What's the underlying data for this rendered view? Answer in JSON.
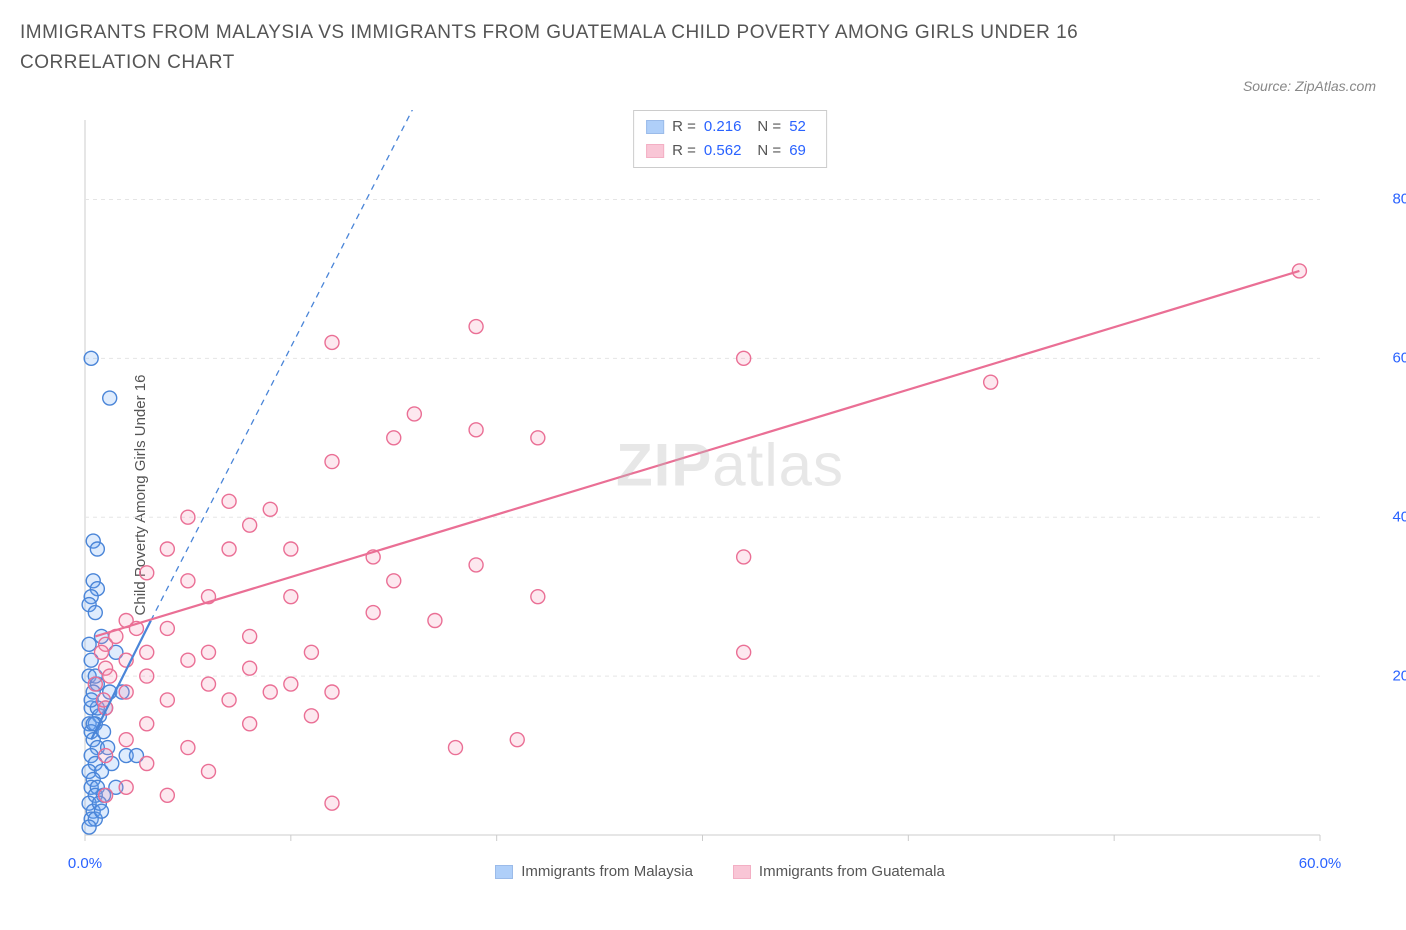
{
  "title": "IMMIGRANTS FROM MALAYSIA VS IMMIGRANTS FROM GUATEMALA CHILD POVERTY AMONG GIRLS UNDER 16 CORRELATION CHART",
  "source": "Source: ZipAtlas.com",
  "y_axis_label": "Child Poverty Among Girls Under 16",
  "watermark_bold": "ZIP",
  "watermark_light": "atlas",
  "chart": {
    "type": "scatter",
    "xlim": [
      0,
      60
    ],
    "ylim": [
      0,
      90
    ],
    "x_ticks": [
      0,
      10,
      20,
      30,
      40,
      50,
      60
    ],
    "x_tick_labels": {
      "0": "0.0%",
      "60": "60.0%"
    },
    "y_gridlines": [
      20,
      40,
      60,
      80
    ],
    "y_tick_labels": [
      "20.0%",
      "40.0%",
      "60.0%",
      "80.0%"
    ],
    "background_color": "#ffffff",
    "grid_color": "#e5e5e5",
    "axis_color": "#cccccc",
    "marker_radius": 7,
    "marker_stroke_width": 1.4,
    "marker_fill_opacity": 0.22,
    "series": [
      {
        "name": "Immigrants from Malaysia",
        "color": "#6fa8f5",
        "stroke": "#4a85d8",
        "R": "0.216",
        "N": "52",
        "trend": {
          "x1": 0.3,
          "y1": 12,
          "x2": 3.2,
          "y2": 27,
          "dash_ext_x": 20,
          "dash_ext_y": 112
        },
        "points": [
          [
            0.3,
            60
          ],
          [
            1.2,
            55
          ],
          [
            0.4,
            37
          ],
          [
            0.6,
            36
          ],
          [
            0.4,
            32
          ],
          [
            0.6,
            31
          ],
          [
            0.3,
            30
          ],
          [
            0.2,
            29
          ],
          [
            0.5,
            28
          ],
          [
            0.2,
            24
          ],
          [
            0.8,
            25
          ],
          [
            0.3,
            22
          ],
          [
            1.5,
            23
          ],
          [
            0.2,
            20
          ],
          [
            0.6,
            19
          ],
          [
            0.4,
            18
          ],
          [
            1.2,
            18
          ],
          [
            0.3,
            16
          ],
          [
            0.7,
            15
          ],
          [
            0.2,
            14
          ],
          [
            0.5,
            14
          ],
          [
            0.3,
            13
          ],
          [
            0.9,
            13
          ],
          [
            0.4,
            12
          ],
          [
            1.8,
            18
          ],
          [
            0.6,
            11
          ],
          [
            0.3,
            10
          ],
          [
            1.1,
            11
          ],
          [
            0.5,
            9
          ],
          [
            0.2,
            8
          ],
          [
            0.8,
            8
          ],
          [
            2.0,
            10
          ],
          [
            0.4,
            7
          ],
          [
            1.3,
            9
          ],
          [
            0.3,
            6
          ],
          [
            0.6,
            6
          ],
          [
            2.5,
            10
          ],
          [
            0.5,
            5
          ],
          [
            0.2,
            4
          ],
          [
            0.9,
            5
          ],
          [
            0.4,
            3
          ],
          [
            1.5,
            6
          ],
          [
            0.7,
            4
          ],
          [
            0.3,
            2
          ],
          [
            0.5,
            2
          ],
          [
            0.2,
            1
          ],
          [
            0.8,
            3
          ],
          [
            0.4,
            14
          ],
          [
            0.6,
            16
          ],
          [
            1.0,
            16
          ],
          [
            0.3,
            17
          ],
          [
            0.5,
            20
          ]
        ]
      },
      {
        "name": "Immigrants from Guatemala",
        "color": "#f598b5",
        "stroke": "#ea6f95",
        "R": "0.562",
        "N": "69",
        "trend": {
          "x1": 0.5,
          "y1": 25,
          "x2": 59,
          "y2": 71,
          "dash_ext_x": 0,
          "dash_ext_y": 0
        },
        "points": [
          [
            59,
            71
          ],
          [
            44,
            57
          ],
          [
            32,
            60
          ],
          [
            19,
            64
          ],
          [
            12,
            62
          ],
          [
            16,
            53
          ],
          [
            19,
            51
          ],
          [
            22,
            50
          ],
          [
            15,
            50
          ],
          [
            12,
            47
          ],
          [
            7,
            42
          ],
          [
            9,
            41
          ],
          [
            5,
            40
          ],
          [
            8,
            39
          ],
          [
            4,
            36
          ],
          [
            7,
            36
          ],
          [
            10,
            36
          ],
          [
            14,
            35
          ],
          [
            32,
            35
          ],
          [
            3,
            33
          ],
          [
            5,
            32
          ],
          [
            19,
            34
          ],
          [
            15,
            32
          ],
          [
            6,
            30
          ],
          [
            10,
            30
          ],
          [
            22,
            30
          ],
          [
            2,
            27
          ],
          [
            4,
            26
          ],
          [
            8,
            25
          ],
          [
            14,
            28
          ],
          [
            17,
            27
          ],
          [
            1,
            24
          ],
          [
            3,
            23
          ],
          [
            6,
            23
          ],
          [
            11,
            23
          ],
          [
            32,
            23
          ],
          [
            2,
            22
          ],
          [
            5,
            22
          ],
          [
            8,
            21
          ],
          [
            1,
            21
          ],
          [
            3,
            20
          ],
          [
            6,
            19
          ],
          [
            10,
            19
          ],
          [
            2,
            18
          ],
          [
            4,
            17
          ],
          [
            7,
            17
          ],
          [
            1,
            16
          ],
          [
            9,
            18
          ],
          [
            12,
            18
          ],
          [
            3,
            14
          ],
          [
            11,
            15
          ],
          [
            8,
            14
          ],
          [
            2,
            12
          ],
          [
            5,
            11
          ],
          [
            18,
            11
          ],
          [
            21,
            12
          ],
          [
            1,
            10
          ],
          [
            3,
            9
          ],
          [
            6,
            8
          ],
          [
            2,
            6
          ],
          [
            4,
            5
          ],
          [
            1,
            5
          ],
          [
            12,
            4
          ],
          [
            0.8,
            23
          ],
          [
            1.5,
            25
          ],
          [
            2.5,
            26
          ],
          [
            0.5,
            19
          ],
          [
            1.2,
            20
          ],
          [
            0.9,
            17
          ]
        ]
      }
    ]
  },
  "legend": {
    "series1_label": "Immigrants from Malaysia",
    "series2_label": "Immigrants from Guatemala"
  },
  "stats_labels": {
    "R": "R =",
    "N": "N ="
  }
}
